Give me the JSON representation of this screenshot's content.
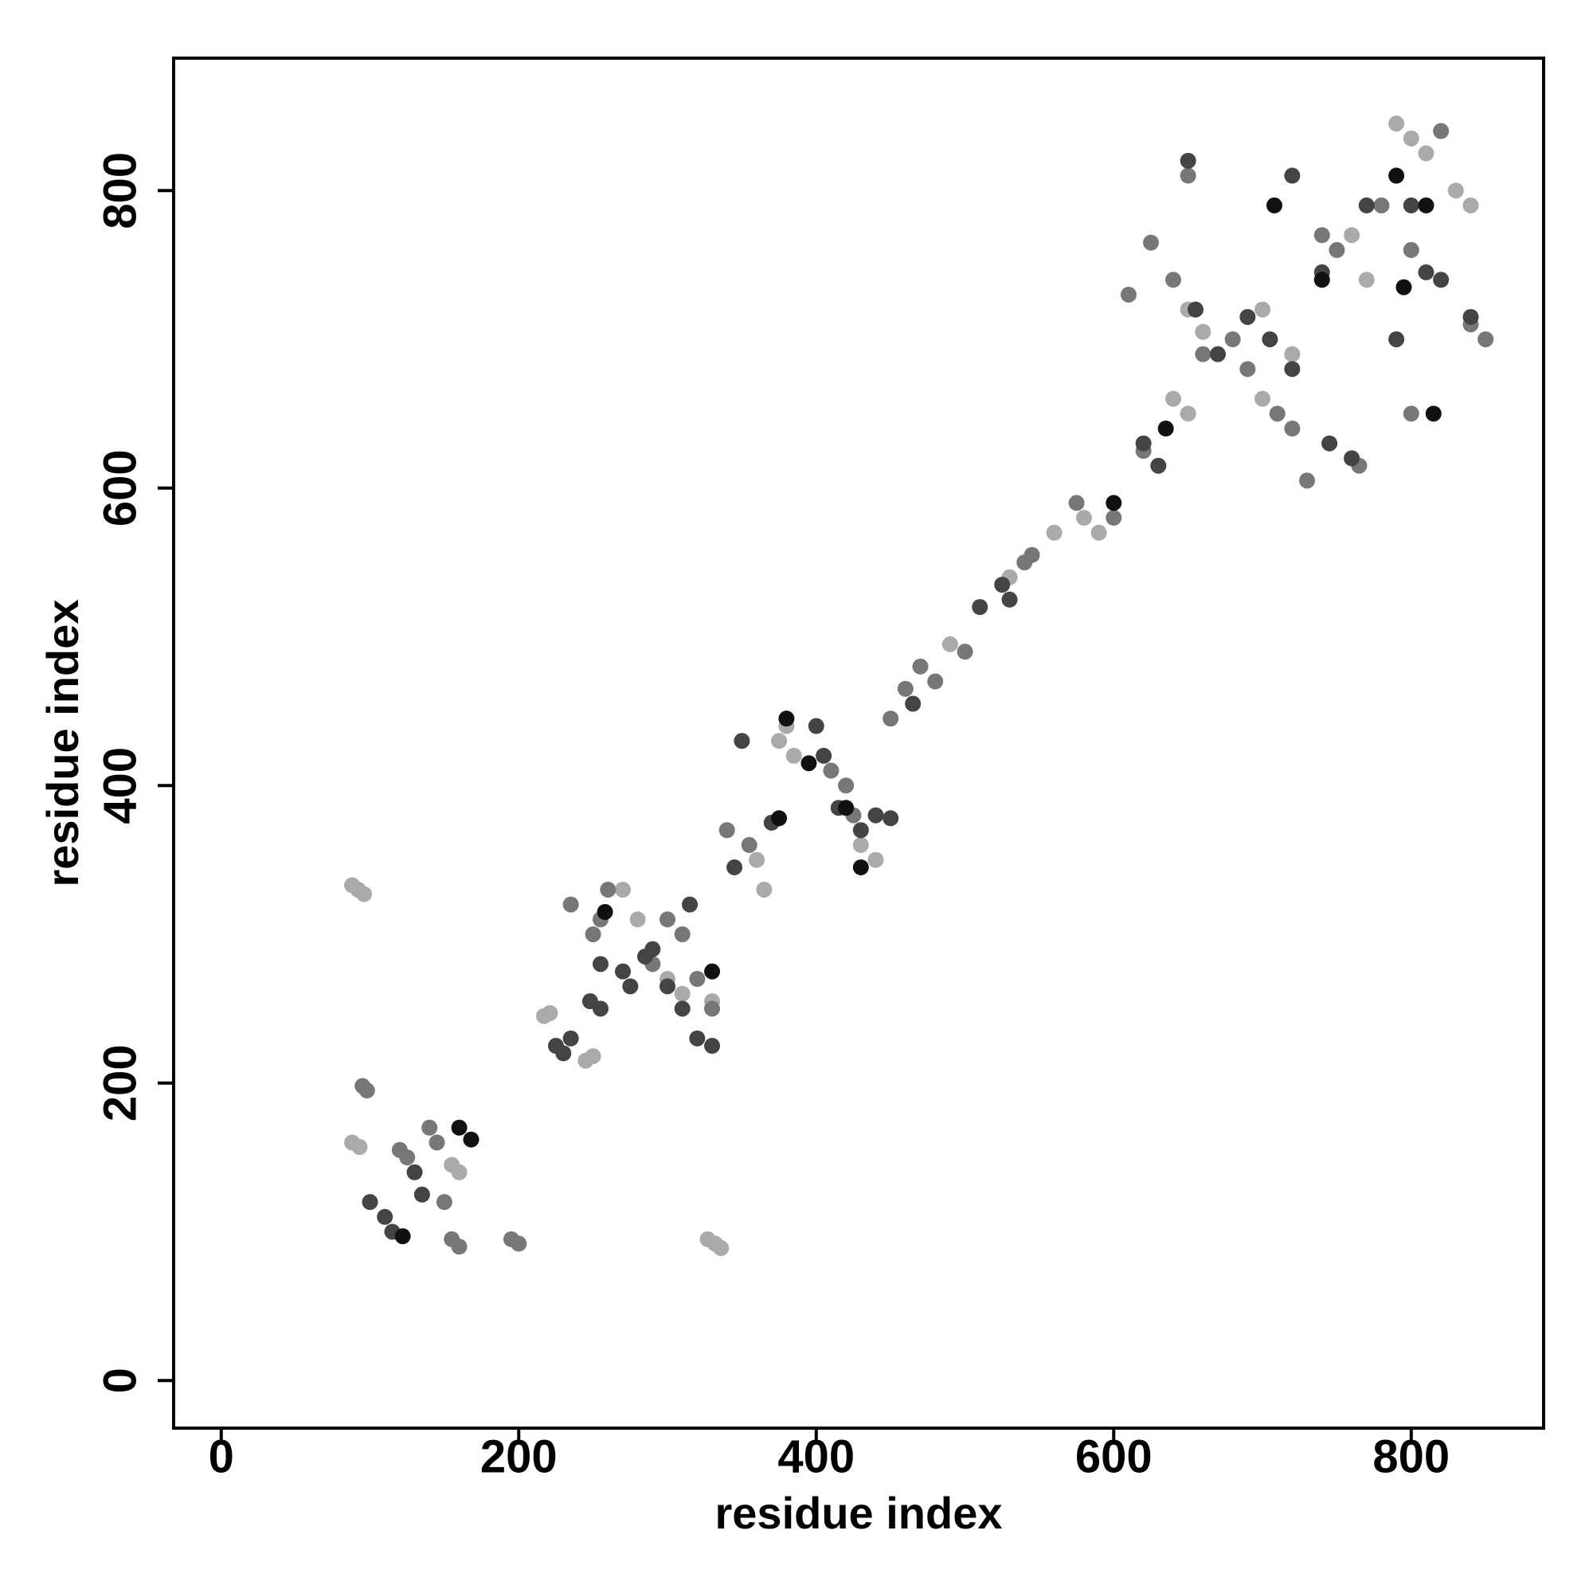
{
  "chart_data": {
    "type": "scatter",
    "xlabel": "residue index",
    "ylabel": "residue index",
    "xlim": [
      -32,
      889
    ],
    "ylim": [
      -32,
      889
    ],
    "xticks": [
      0,
      200,
      400,
      600,
      800
    ],
    "yticks": [
      0,
      200,
      400,
      600,
      800
    ],
    "series": [
      {
        "color": "#aaaaaa",
        "x": [
          88,
          92,
          96,
          327,
          332,
          336,
          88,
          93,
          217,
          221,
          245,
          250,
          360,
          365,
          385,
          650,
          660,
          700,
          720,
          790,
          800,
          810,
          830,
          840,
          760,
          770,
          640,
          650,
          580,
          590,
          530,
          490,
          155,
          160,
          300,
          310,
          330,
          270,
          280,
          430,
          440,
          380,
          375,
          560,
          700
        ],
        "y": [
          333,
          330,
          327,
          95,
          92,
          89,
          160,
          157,
          245,
          247,
          215,
          218,
          350,
          330,
          420,
          720,
          705,
          720,
          690,
          845,
          835,
          825,
          800,
          790,
          770,
          740,
          660,
          650,
          580,
          570,
          540,
          495,
          145,
          140,
          270,
          260,
          255,
          330,
          310,
          360,
          350,
          440,
          430,
          570,
          660
        ]
      },
      {
        "color": "#777777",
        "x": [
          95,
          98,
          120,
          125,
          140,
          145,
          150,
          155,
          160,
          195,
          200,
          250,
          255,
          260,
          300,
          310,
          320,
          330,
          340,
          355,
          420,
          425,
          410,
          470,
          480,
          500,
          540,
          575,
          600,
          620,
          640,
          650,
          660,
          680,
          690,
          710,
          720,
          740,
          750,
          780,
          800,
          820,
          840,
          850,
          800,
          610,
          625,
          730,
          765,
          460,
          545,
          450,
          235,
          290
        ],
        "y": [
          198,
          195,
          155,
          150,
          170,
          160,
          120,
          95,
          90,
          95,
          92,
          300,
          310,
          330,
          310,
          300,
          270,
          250,
          370,
          360,
          400,
          380,
          410,
          480,
          470,
          490,
          550,
          590,
          580,
          625,
          740,
          810,
          690,
          700,
          680,
          650,
          640,
          770,
          760,
          790,
          760,
          840,
          710,
          700,
          650,
          730,
          765,
          605,
          615,
          465,
          555,
          445,
          320,
          280
        ]
      },
      {
        "color": "#444444",
        "x": [
          100,
          110,
          115,
          130,
          135,
          225,
          230,
          235,
          248,
          255,
          270,
          275,
          285,
          300,
          310,
          320,
          330,
          345,
          350,
          370,
          400,
          405,
          415,
          430,
          440,
          450,
          465,
          510,
          525,
          530,
          620,
          630,
          655,
          670,
          690,
          705,
          720,
          740,
          745,
          760,
          790,
          800,
          810,
          820,
          650,
          720,
          770,
          840,
          290,
          315,
          255
        ],
        "y": [
          120,
          110,
          100,
          140,
          125,
          225,
          220,
          230,
          255,
          250,
          275,
          265,
          285,
          265,
          250,
          230,
          225,
          345,
          430,
          375,
          440,
          420,
          385,
          370,
          380,
          378,
          455,
          520,
          535,
          525,
          630,
          615,
          720,
          690,
          715,
          700,
          680,
          745,
          630,
          620,
          700,
          790,
          745,
          740,
          820,
          810,
          790,
          715,
          290,
          320,
          280
        ]
      },
      {
        "color": "#111111",
        "x": [
          160,
          168,
          122,
          375,
          380,
          395,
          420,
          430,
          635,
          790,
          810,
          815,
          740,
          708,
          795,
          600,
          330,
          258
        ],
        "y": [
          170,
          162,
          97,
          378,
          445,
          415,
          385,
          345,
          640,
          810,
          790,
          650,
          740,
          790,
          735,
          590,
          275,
          315
        ]
      }
    ]
  }
}
